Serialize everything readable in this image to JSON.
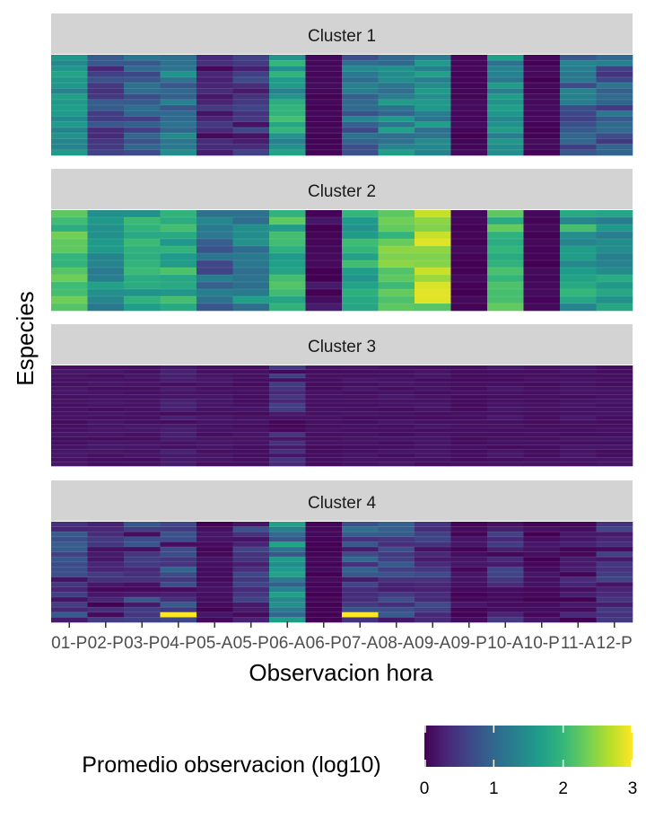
{
  "chart_data": {
    "type": "heatmap",
    "title": "",
    "xlabel": "Observacion hora",
    "ylabel": "Especies",
    "categories": [
      "01-P",
      "02-P",
      "03-P",
      "04-P",
      "05-A",
      "05-P",
      "06-A",
      "06-P",
      "07-A",
      "08-A",
      "09-A",
      "09-P",
      "10-A",
      "10-P",
      "11-A",
      "12-P"
    ],
    "panels": [
      {
        "label": "Cluster 1",
        "rows": 18,
        "column_means": [
          1.5,
          0.6,
          0.85,
          1.2,
          0.3,
          0.4,
          1.7,
          0.05,
          1.05,
          1.3,
          1.45,
          0.05,
          1.4,
          0.05,
          1.0,
          0.9
        ],
        "column_spread": [
          0.25,
          0.35,
          0.35,
          0.4,
          0.25,
          0.3,
          0.4,
          0.05,
          0.4,
          0.4,
          0.4,
          0.05,
          0.3,
          0.05,
          0.5,
          0.5
        ]
      },
      {
        "label": "Cluster 2",
        "rows": 14,
        "column_means": [
          2.1,
          1.5,
          1.75,
          1.85,
          1.0,
          1.4,
          1.95,
          0.1,
          1.8,
          2.25,
          2.5,
          0.05,
          2.0,
          0.05,
          1.75,
          1.55
        ],
        "column_spread": [
          0.25,
          0.3,
          0.3,
          0.3,
          0.4,
          0.4,
          0.35,
          0.15,
          0.3,
          0.3,
          0.4,
          0.05,
          0.3,
          0.05,
          0.4,
          0.3
        ]
      },
      {
        "label": "Cluster 3",
        "rows": 24,
        "column_means": [
          0.15,
          0.15,
          0.15,
          0.18,
          0.15,
          0.13,
          0.3,
          0.12,
          0.15,
          0.15,
          0.15,
          0.12,
          0.15,
          0.12,
          0.15,
          0.15
        ],
        "column_spread": [
          0.05,
          0.05,
          0.05,
          0.1,
          0.05,
          0.05,
          0.3,
          0.03,
          0.05,
          0.05,
          0.05,
          0.03,
          0.06,
          0.03,
          0.05,
          0.05
        ]
      },
      {
        "label": "Cluster 4",
        "rows": 20,
        "column_means": [
          0.5,
          0.25,
          0.45,
          0.55,
          0.1,
          0.4,
          1.3,
          0.05,
          0.65,
          0.55,
          0.4,
          0.1,
          0.35,
          0.1,
          0.2,
          0.35
        ],
        "column_spread": [
          0.4,
          0.3,
          0.4,
          0.5,
          0.1,
          0.4,
          0.5,
          0.05,
          0.5,
          0.4,
          0.3,
          0.1,
          0.3,
          0.1,
          0.2,
          0.3
        ],
        "highlights": [
          {
            "column": "04-P",
            "row": 18,
            "value": 3.0
          },
          {
            "column": "07-A",
            "row": 18,
            "value": 3.0
          }
        ]
      }
    ],
    "colorbar": {
      "title": "Promedio  observacion (log10)",
      "min": 0,
      "max": 3,
      "ticks": [
        0,
        1,
        2,
        3
      ],
      "palette": [
        "#440154",
        "#482878",
        "#3e4989",
        "#31688e",
        "#26828e",
        "#1f9e89",
        "#35b779",
        "#6ece58",
        "#b5de2b",
        "#fde725"
      ]
    },
    "strip_color": "#d3d3d3"
  }
}
